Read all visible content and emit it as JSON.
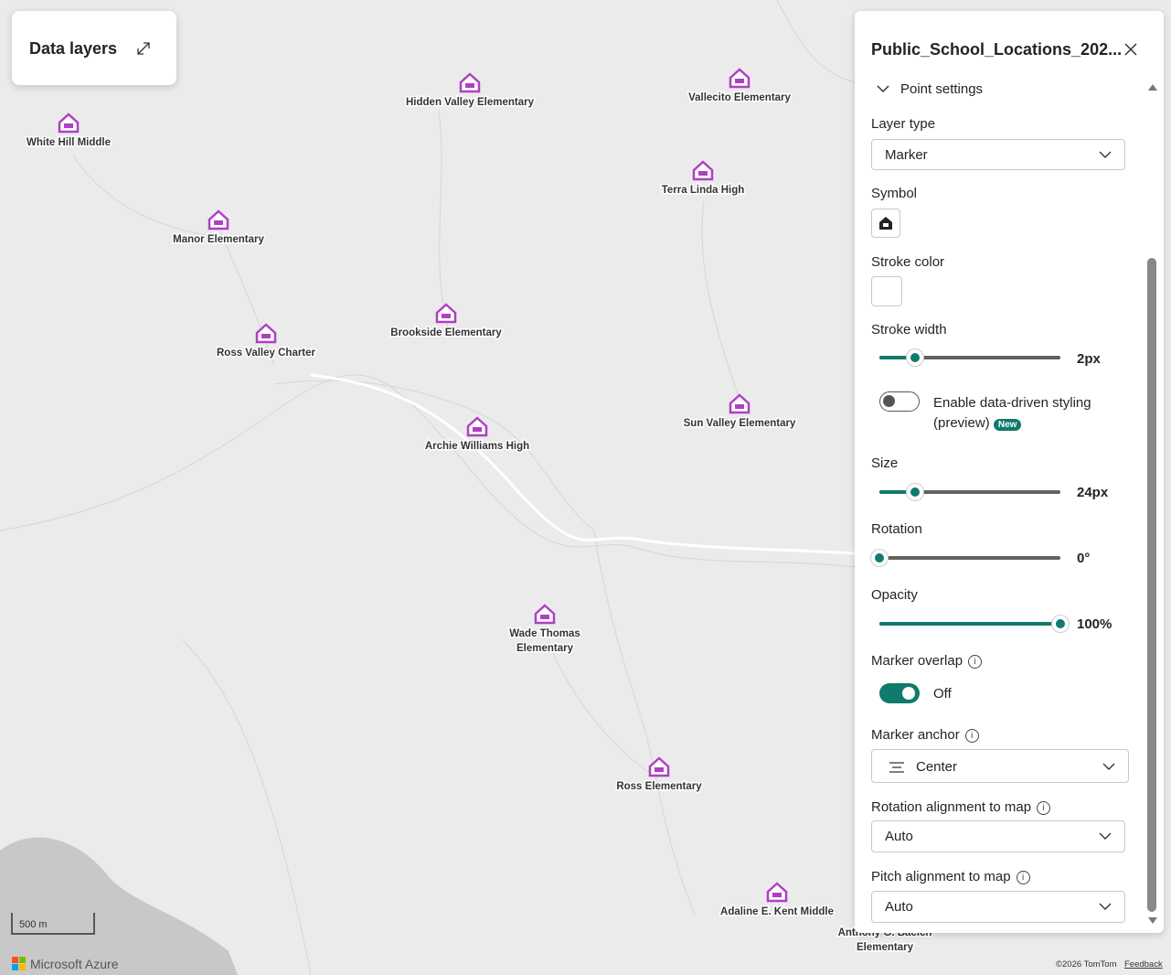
{
  "data_layers_button": {
    "title": "Data layers"
  },
  "map": {
    "schools": [
      {
        "lines": [
          "White Hill Middle"
        ]
      },
      {
        "lines": [
          "Hidden Valley Elementary"
        ]
      },
      {
        "lines": [
          "Vallecito Elementary"
        ]
      },
      {
        "lines": [
          "Terra Linda High"
        ]
      },
      {
        "lines": [
          "Manor Elementary"
        ]
      },
      {
        "lines": [
          "Brookside Elementary"
        ]
      },
      {
        "lines": [
          "Ross Valley Charter"
        ]
      },
      {
        "lines": [
          "Archie Williams High"
        ]
      },
      {
        "lines": [
          "Sun Valley Elementary"
        ]
      },
      {
        "lines": [
          "Wade Thomas",
          "Elementary"
        ]
      },
      {
        "lines": [
          "Ross Elementary"
        ]
      },
      {
        "lines": [
          "Adaline E. Kent Middle"
        ]
      },
      {
        "lines": [
          "Anthony G. Bacich",
          "Elementary"
        ]
      }
    ],
    "scale": "500 m",
    "brand": "Microsoft Azure",
    "copyright": "©2026 TomTom",
    "feedback": "Feedback"
  },
  "panel": {
    "title": "Public_School_Locations_202...",
    "section": "Point settings",
    "layer_type": {
      "label": "Layer type",
      "value": "Marker"
    },
    "symbol": {
      "label": "Symbol"
    },
    "stroke_color": {
      "label": "Stroke color"
    },
    "stroke_width": {
      "label": "Stroke width",
      "value": "2px"
    },
    "data_driven": {
      "label": "Enable data-driven styling (preview)",
      "badge": "New"
    },
    "size": {
      "label": "Size",
      "value": "24px"
    },
    "rotation": {
      "label": "Rotation",
      "value": "0°"
    },
    "opacity": {
      "label": "Opacity",
      "value": "100%"
    },
    "marker_overlap": {
      "label": "Marker overlap",
      "value": "Off"
    },
    "marker_anchor": {
      "label": "Marker anchor",
      "value": "Center"
    },
    "rotation_alignment": {
      "label": "Rotation alignment to map",
      "value": "Auto"
    },
    "pitch_alignment": {
      "label": "Pitch alignment to map",
      "value": "Auto"
    }
  }
}
